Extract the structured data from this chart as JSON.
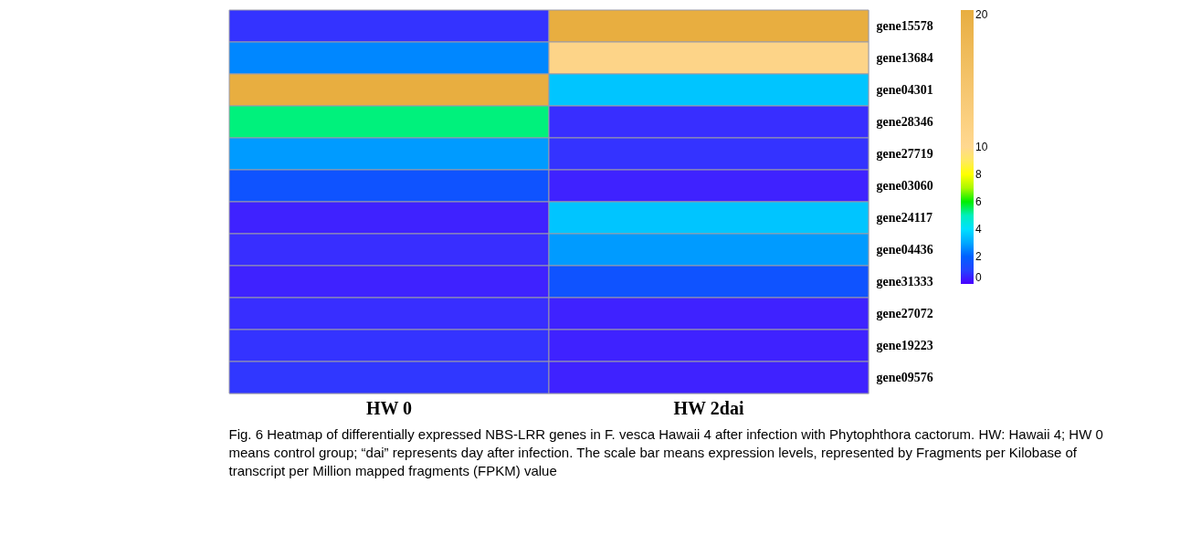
{
  "chart_data": {
    "type": "heatmap",
    "categories": [
      "HW 0",
      "HW 2dai"
    ],
    "y_categories": [
      "gene15578",
      "gene13684",
      "gene04301",
      "gene28346",
      "gene27719",
      "gene03060",
      "gene24117",
      "gene04436",
      "gene31333",
      "gene27072",
      "gene19223",
      "gene09576"
    ],
    "cells": [
      [
        0.6,
        20
      ],
      [
        2.5,
        11
      ],
      [
        20,
        3.5
      ],
      [
        5.5,
        0.5
      ],
      [
        2.8,
        0.6
      ],
      [
        1.5,
        0.3
      ],
      [
        0.3,
        3.5
      ],
      [
        0.5,
        2.8
      ],
      [
        0.3,
        1.5
      ],
      [
        0.5,
        0.3
      ],
      [
        0.6,
        0.3
      ],
      [
        0.7,
        0.3
      ]
    ],
    "clim": [
      0,
      20
    ],
    "cticks": [
      0,
      2,
      4,
      6,
      8,
      10,
      20
    ],
    "colors": [
      "#4a00ff",
      "#0060ff",
      "#00e0ff",
      "#00ee00",
      "#ffff00",
      "#ffd890",
      "#e8ae40"
    ],
    "annotations": [
      "Fig. 6 Heatmap of differentially expressed NBS-LRR genes in F. vesca Hawaii 4 after infection with Phytophthora cactorum. HW: Hawaii 4; HW 0 means control group; “dai” represents day after infection. The scale bar means expression levels, represented by Fragments per Kilobase of transcript per Million mapped fragments (FPKM) value"
    ]
  }
}
